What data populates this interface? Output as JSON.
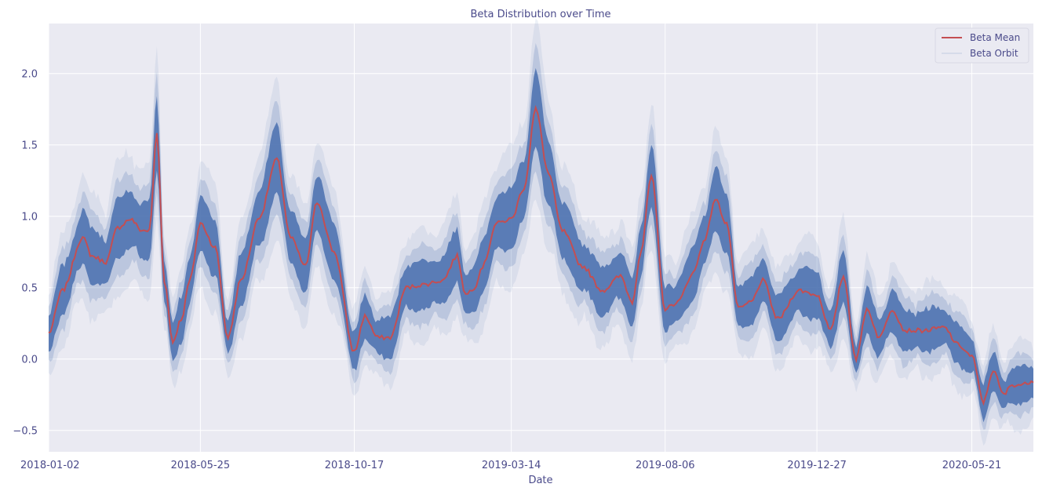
{
  "chart_data": {
    "type": "line",
    "title": "Beta Distribution over Time",
    "xlabel": "Date",
    "ylabel": "",
    "x_tick_labels": [
      "2018-01-02",
      "2018-05-25",
      "2018-10-17",
      "2019-03-14",
      "2019-08-06",
      "2019-12-27",
      "2020-05-21"
    ],
    "x_range": [
      "2018-01-02",
      "2020-07-18"
    ],
    "y_ticks": [
      -0.5,
      0.0,
      0.5,
      1.0,
      1.5,
      2.0
    ],
    "y_tick_labels": [
      "−0.5",
      "0.0",
      "0.5",
      "1.0",
      "1.5",
      "2.0"
    ],
    "ylim": [
      -0.65,
      2.35
    ],
    "grid": true,
    "legend_position": "top-right",
    "colors": {
      "mean": "#c44e52",
      "orbit": "#4c72b0",
      "background": "#eaeaf2",
      "grid": "#ffffff"
    },
    "series": [
      {
        "name": "Beta Mean",
        "x": [
          "2018-01-02",
          "2018-01-15",
          "2018-02-03",
          "2018-02-12",
          "2018-02-25",
          "2018-03-08",
          "2018-03-20",
          "2018-03-31",
          "2018-04-07",
          "2018-04-14",
          "2018-04-21",
          "2018-04-29",
          "2018-05-07",
          "2018-05-15",
          "2018-05-25",
          "2018-06-08",
          "2018-06-20",
          "2018-07-02",
          "2018-07-20",
          "2018-08-05",
          "2018-08-18",
          "2018-09-01",
          "2018-09-12",
          "2018-09-28",
          "2018-10-17",
          "2018-10-27",
          "2018-11-08",
          "2018-11-20",
          "2018-12-05",
          "2018-12-20",
          "2019-01-08",
          "2019-01-22",
          "2019-01-30",
          "2019-02-07",
          "2019-02-15",
          "2019-02-28",
          "2019-03-14",
          "2019-03-26",
          "2019-04-06",
          "2019-04-18",
          "2019-05-01",
          "2019-05-20",
          "2019-06-08",
          "2019-06-25",
          "2019-07-06",
          "2019-07-14",
          "2019-07-24",
          "2019-08-06",
          "2019-08-18",
          "2019-09-01",
          "2019-09-13",
          "2019-09-22",
          "2019-10-03",
          "2019-10-14",
          "2019-10-26",
          "2019-11-06",
          "2019-11-20",
          "2019-12-10",
          "2019-12-27",
          "2020-01-09",
          "2020-01-21",
          "2020-02-02",
          "2020-02-12",
          "2020-02-24",
          "2020-03-07",
          "2020-03-19",
          "2020-04-06",
          "2020-04-25",
          "2020-05-08",
          "2020-05-21",
          "2020-06-01",
          "2020-06-10",
          "2020-06-20",
          "2020-06-28",
          "2020-07-08",
          "2020-07-18"
        ],
        "values": [
          0.18,
          0.48,
          0.85,
          0.72,
          0.68,
          0.92,
          0.98,
          0.9,
          0.9,
          1.58,
          0.55,
          0.12,
          0.28,
          0.55,
          0.95,
          0.78,
          0.15,
          0.55,
          1.0,
          1.4,
          0.85,
          0.65,
          1.1,
          0.75,
          0.05,
          0.3,
          0.15,
          0.15,
          0.5,
          0.52,
          0.55,
          0.72,
          0.45,
          0.5,
          0.65,
          0.95,
          0.98,
          1.2,
          1.75,
          1.3,
          0.9,
          0.65,
          0.48,
          0.58,
          0.4,
          0.75,
          1.28,
          0.35,
          0.4,
          0.6,
          0.85,
          1.12,
          0.95,
          0.35,
          0.4,
          0.55,
          0.28,
          0.48,
          0.45,
          0.2,
          0.58,
          0.0,
          0.35,
          0.15,
          0.35,
          0.2,
          0.2,
          0.22,
          0.1,
          0.02,
          -0.3,
          -0.08,
          -0.25,
          -0.18,
          -0.18,
          -0.15
        ]
      },
      {
        "name": "Beta Orbit",
        "x": [],
        "values": []
      }
    ]
  }
}
